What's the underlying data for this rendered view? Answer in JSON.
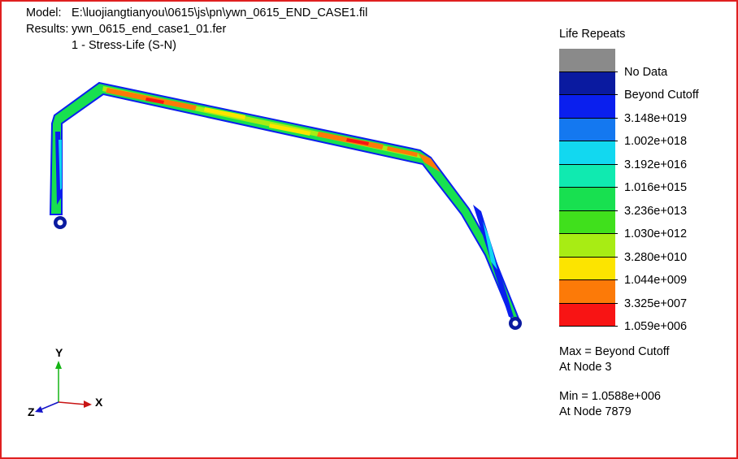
{
  "header": {
    "model_label": "Model:",
    "model_value": "E:\\luojiangtianyou\\0615\\js\\pn\\ywn_0615_END_CASE1.fil",
    "results_label": "Results:",
    "results_value": "ywn_0615_end_case1_01.fer",
    "analysis": "1 - Stress-Life (S-N)"
  },
  "legend": {
    "title": "Life Repeats",
    "rows": [
      {
        "label": "No Data",
        "color": "#8a8a8a"
      },
      {
        "label": "Beyond Cutoff",
        "color": "#0a1aa0"
      },
      {
        "label": "3.148e+019",
        "color": "#0a1fee"
      },
      {
        "label": "1.002e+018",
        "color": "#1478f0"
      },
      {
        "label": "3.192e+016",
        "color": "#12d8f0"
      },
      {
        "label": "1.016e+015",
        "color": "#10eab0"
      },
      {
        "label": "3.236e+013",
        "color": "#18e050"
      },
      {
        "label": "1.030e+012",
        "color": "#40e01c"
      },
      {
        "label": "3.280e+010",
        "color": "#a8ec14"
      },
      {
        "label": "1.044e+009",
        "color": "#fce400"
      },
      {
        "label": "3.325e+007",
        "color": "#fc7a08"
      },
      {
        "label": "1.059e+006",
        "color": "#f81414"
      }
    ]
  },
  "stats": {
    "max_line": "Max = Beyond Cutoff",
    "max_node": "At Node 3",
    "min_line": "Min = 1.0588e+006",
    "min_node": "At Node 7879"
  },
  "axes": {
    "x_label": "X",
    "y_label": "Y",
    "z_label": "Z",
    "x_color": "#c81414",
    "y_color": "#14b414",
    "z_color": "#1414c8"
  },
  "colors": {
    "frame_border": "#e02020",
    "background": "#ffffff"
  }
}
